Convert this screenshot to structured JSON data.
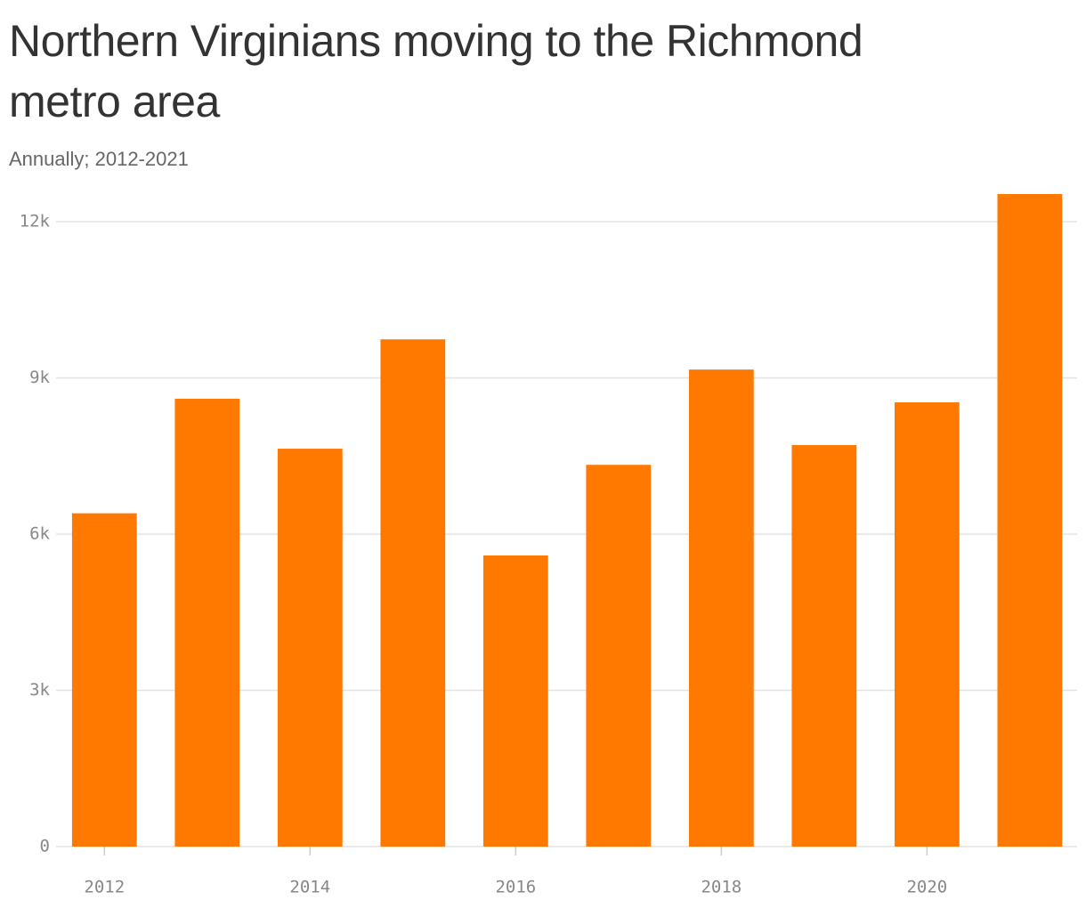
{
  "chart_data": {
    "type": "bar",
    "title": "Northern Virginians moving to the Richmond metro area",
    "subtitle": "Annually; 2012-2021",
    "x": [
      2012,
      2013,
      2014,
      2015,
      2016,
      2017,
      2018,
      2019,
      2020,
      2021
    ],
    "values": [
      6400,
      8600,
      7640,
      9740,
      5590,
      7330,
      9160,
      7710,
      8530,
      12530
    ],
    "color": "#ff7900",
    "xlim": [
      2011.53,
      2021.46
    ],
    "xticks": [
      2012,
      2014,
      2016,
      2018,
      2020
    ],
    "ylim": [
      0,
      12000
    ],
    "yticks": [
      0,
      {
        "value": 3000,
        "label": "3k"
      },
      {
        "value": 6000,
        "label": "6k"
      },
      {
        "value": 9000,
        "label": "9k"
      },
      {
        "value": 12000,
        "label": "12k"
      }
    ],
    "grid": true
  }
}
